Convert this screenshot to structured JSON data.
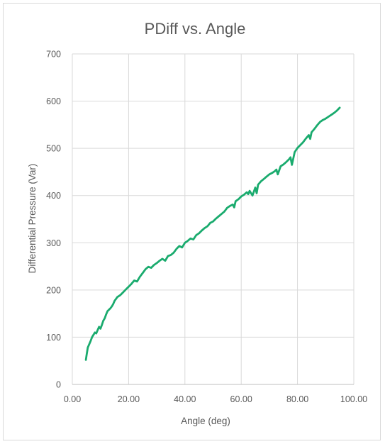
{
  "chart_data": {
    "type": "line",
    "title": "PDiff vs. Angle",
    "xlabel": "Angle (deg)",
    "ylabel": "Differential Pressure (Var)",
    "xlim": [
      0,
      100
    ],
    "ylim": [
      0,
      700
    ],
    "x_ticks": [
      "0.00",
      "20.00",
      "40.00",
      "60.00",
      "80.00",
      "100.00"
    ],
    "y_ticks": [
      "0",
      "100",
      "200",
      "300",
      "400",
      "500",
      "600",
      "700"
    ],
    "grid": true,
    "legend": "none",
    "series": [
      {
        "color": "#1aab6e",
        "x": [
          4.8,
          5.1,
          5.5,
          6.0,
          6.5,
          7.0,
          7.5,
          8.0,
          8.5,
          9.0,
          9.5,
          10.0,
          10.5,
          11.0,
          11.5,
          12.0,
          12.5,
          13.0,
          13.5,
          14.0,
          14.5,
          15.0,
          16.0,
          17.0,
          18.0,
          19.0,
          20.0,
          21.0,
          22.0,
          23.0,
          24.0,
          25.0,
          26.0,
          27.0,
          28.0,
          29.0,
          30.0,
          31.0,
          32.0,
          33.0,
          34.0,
          35.0,
          36.0,
          37.0,
          38.0,
          39.0,
          40.0,
          41.0,
          42.0,
          43.0,
          44.0,
          45.0,
          46.0,
          47.0,
          48.0,
          49.0,
          50.0,
          51.0,
          52.0,
          53.0,
          54.0,
          55.0,
          56.0,
          57.0,
          57.5,
          58.0,
          59.0,
          60.0,
          61.0,
          62.0,
          62.5,
          63.0,
          64.0,
          65.0,
          65.5,
          66.0,
          67.0,
          68.0,
          69.0,
          70.0,
          71.0,
          72.0,
          72.5,
          73.0,
          74.0,
          75.0,
          76.0,
          77.0,
          77.5,
          78.0,
          79.0,
          80.0,
          81.0,
          82.0,
          83.0,
          84.0,
          84.5,
          85.0,
          86.0,
          87.0,
          88.0,
          89.0,
          90.0,
          91.0,
          92.0,
          93.0,
          94.0,
          95.0
        ],
        "y": [
          52,
          63,
          78,
          85,
          92,
          100,
          105,
          110,
          108,
          115,
          122,
          118,
          126,
          135,
          140,
          148,
          155,
          158,
          161,
          165,
          170,
          177,
          185,
          189,
          195,
          201,
          207,
          213,
          220,
          218,
          228,
          236,
          244,
          249,
          247,
          253,
          257,
          262,
          266,
          262,
          272,
          274,
          279,
          287,
          293,
          290,
          300,
          304,
          309,
          307,
          316,
          320,
          326,
          331,
          335,
          342,
          345,
          351,
          356,
          361,
          366,
          374,
          378,
          381,
          375,
          388,
          392,
          398,
          402,
          407,
          403,
          410,
          400,
          417,
          405,
          423,
          430,
          435,
          440,
          445,
          448,
          452,
          455,
          445,
          462,
          466,
          471,
          477,
          481,
          465,
          492,
          501,
          507,
          513,
          521,
          528,
          520,
          534,
          541,
          549,
          556,
          560,
          563,
          567,
          571,
          575,
          580,
          586
        ]
      }
    ]
  }
}
